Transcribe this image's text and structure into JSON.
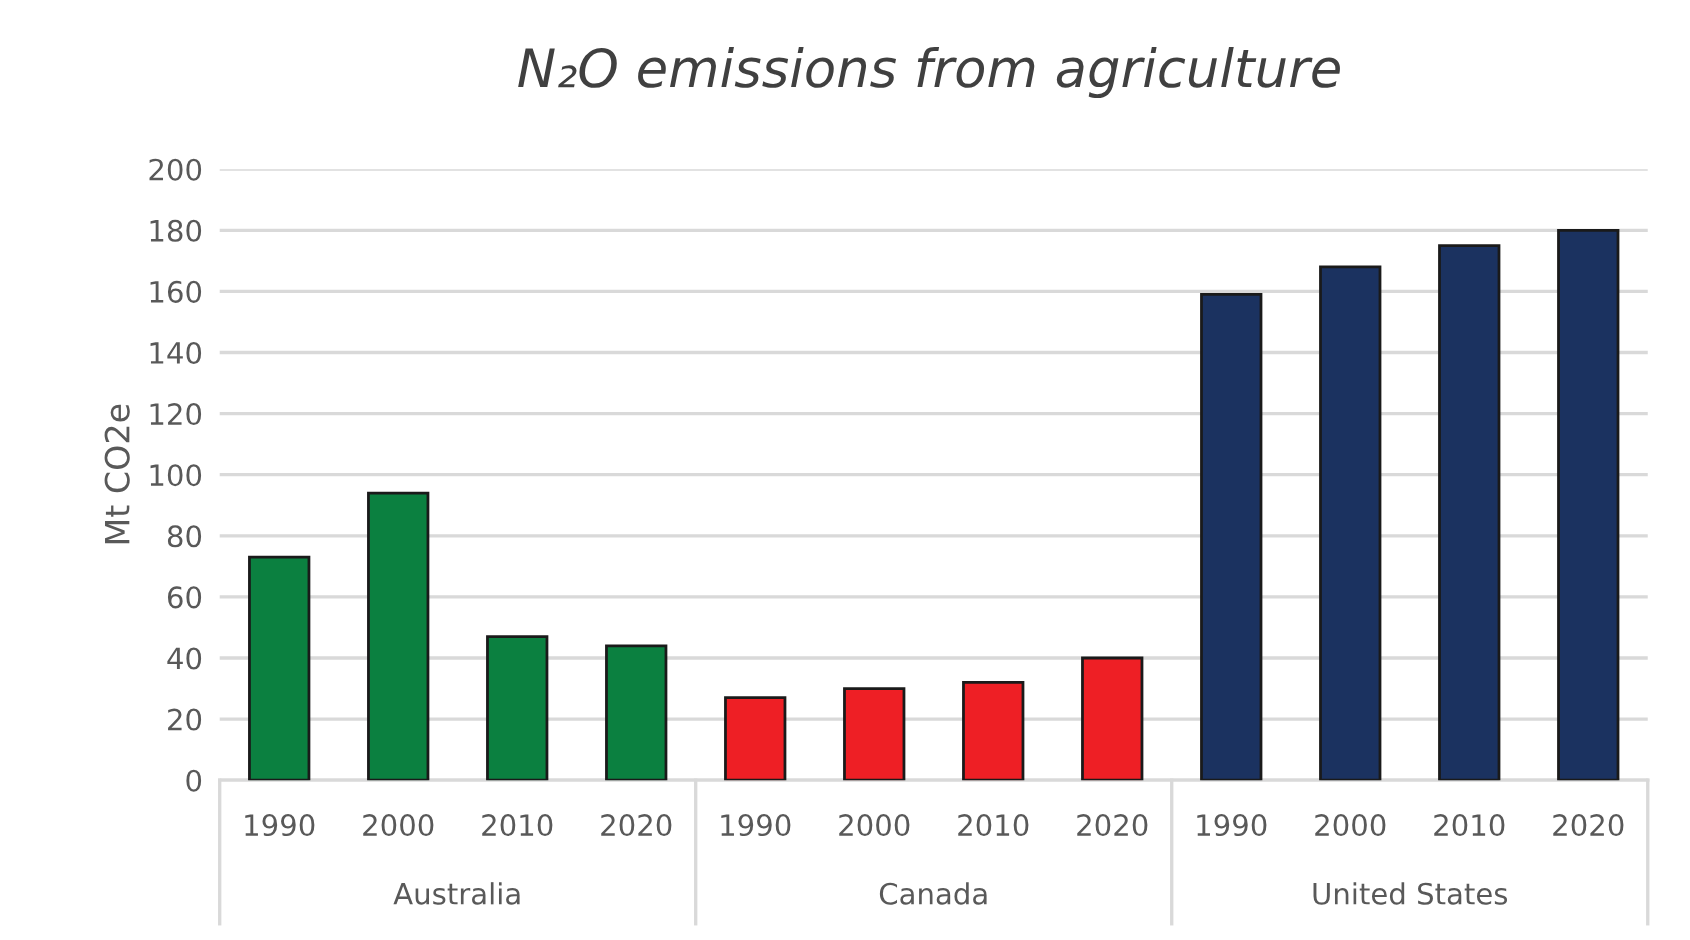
{
  "chart_data": {
    "type": "bar",
    "title": "N₂O emissions from agriculture",
    "ylabel": "Mt CO2e",
    "categories": [
      "1990",
      "2000",
      "2010",
      "2020",
      "1990",
      "2000",
      "2010",
      "2020",
      "1990",
      "2000",
      "2010",
      "2020"
    ],
    "values": [
      73,
      94,
      47,
      44,
      27,
      30,
      32,
      40,
      159,
      168,
      175,
      180
    ],
    "colors": [
      "#0b8040",
      "#0b8040",
      "#0b8040",
      "#0b8040",
      "#ee1f25",
      "#ee1f25",
      "#ee1f25",
      "#ee1f25",
      "#1b3260",
      "#1b3260",
      "#1b3260",
      "#1b3260"
    ],
    "annotations": [
      "Australia",
      "Canada",
      "United States"
    ],
    "ylim": [
      0,
      200
    ],
    "yticks": [
      0,
      20,
      40,
      60,
      80,
      100,
      120,
      140,
      160,
      180,
      200
    ],
    "grid": "y"
  }
}
